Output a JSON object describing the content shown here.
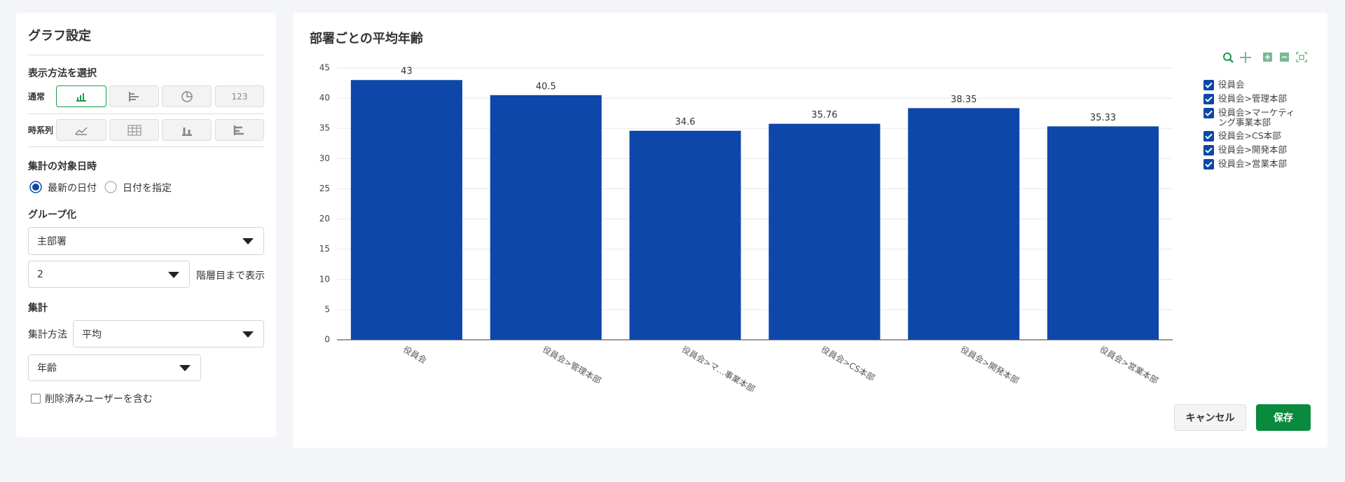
{
  "settings": {
    "title": "グラフ設定",
    "display_method_label": "表示方法を選択",
    "normal_label": "通常",
    "timeseries_label": "時系列",
    "number_button": "123",
    "target_date_label": "集計の対象日時",
    "date_options": [
      "最新の日付",
      "日付を指定"
    ],
    "grouping_label": "グループ化",
    "group_select": "主部署",
    "level_select": "2",
    "level_suffix": "階層目まで表示",
    "aggregate_label": "集計",
    "aggregate_method_label": "集計方法",
    "method_select": "平均",
    "field_select": "年齢",
    "include_deleted": "削除済みユーザーを含む"
  },
  "chart_data": {
    "type": "bar",
    "title": "部署ごとの平均年齢",
    "categories": [
      "役員会",
      "役員会>管理本部",
      "役員会>マーケティング事業本部",
      "役員会>CS本部",
      "役員会>開発本部",
      "役員会>営業本部"
    ],
    "category_axis_labels": [
      "役員会",
      "役員会>管理本部",
      "役員会>マ…事業本部",
      "役員会>CS本部",
      "役員会>開発本部",
      "役員会>営業本部"
    ],
    "values": [
      43,
      40.5,
      34.6,
      35.76,
      38.35,
      35.33
    ],
    "color": "#0d47a9",
    "ylim": [
      0,
      45
    ],
    "yticks": [
      0,
      5,
      10,
      15,
      20,
      25,
      30,
      35,
      40,
      45
    ],
    "grid": true
  },
  "buttons": {
    "cancel": "キャンセル",
    "save": "保存"
  }
}
